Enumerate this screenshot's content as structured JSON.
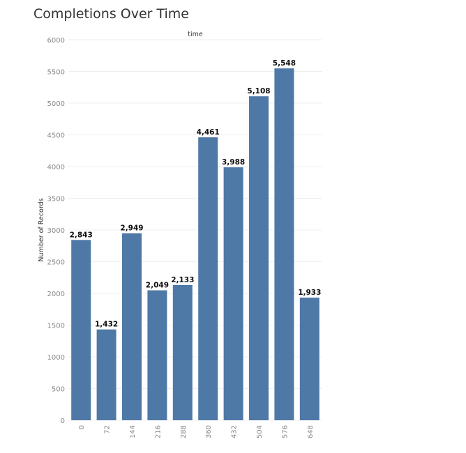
{
  "chart_data": {
    "type": "bar",
    "title": "Completions Over Time",
    "xlabel": "time",
    "ylabel": "Number of Records",
    "categories": [
      "0",
      "72",
      "144",
      "216",
      "288",
      "360",
      "432",
      "504",
      "576",
      "648"
    ],
    "values": [
      2843,
      1432,
      2949,
      2049,
      2133,
      4461,
      3988,
      5108,
      5548,
      1933
    ],
    "value_labels": [
      "2,843",
      "1,432",
      "2,949",
      "2,049",
      "2,133",
      "4,461",
      "3,988",
      "5,108",
      "5,548",
      "1,933"
    ],
    "yticks": [
      "0",
      "500",
      "1000",
      "1500",
      "2000",
      "2500",
      "3000",
      "3500",
      "4000",
      "4500",
      "5000",
      "5500",
      "6000"
    ],
    "ylim": [
      0,
      6000
    ],
    "grid": true,
    "colors": {
      "bar": "#4e79a7",
      "grid": "#efefef"
    }
  }
}
